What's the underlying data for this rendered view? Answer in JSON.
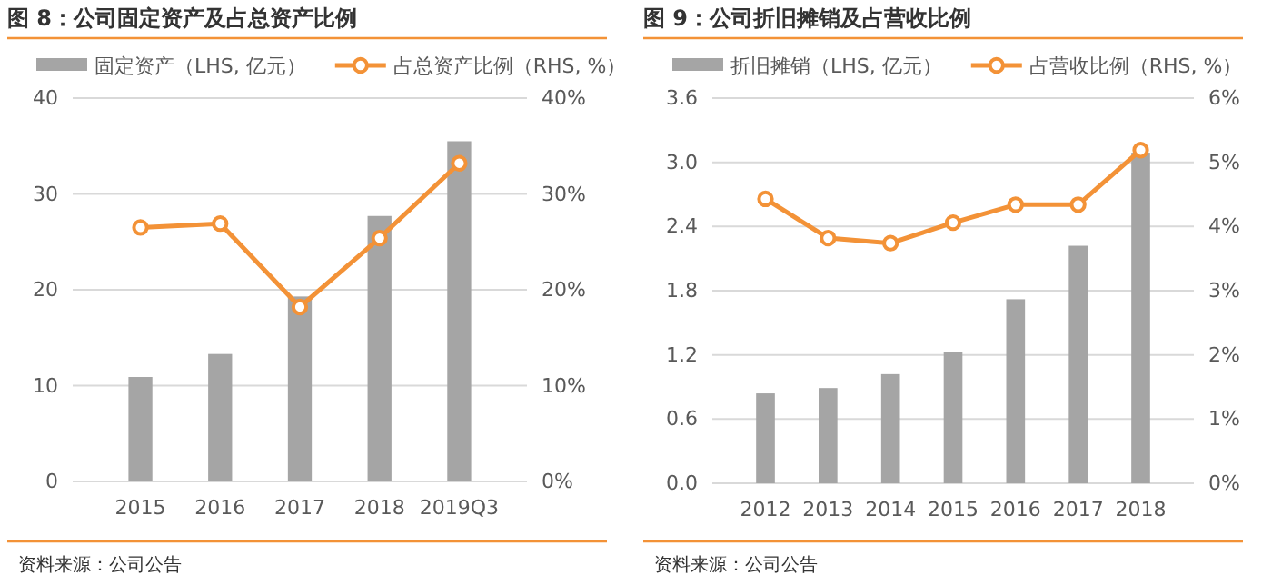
{
  "chart_data": [
    {
      "type": "bar",
      "title": "图 8：公司固定资产及占总资产比例",
      "categories": [
        "2015",
        "2016",
        "2017",
        "2018",
        "2019Q3"
      ],
      "series": [
        {
          "name": "固定资产（LHS, 亿元）",
          "color": "#a5a5a5",
          "values": [
            10.9,
            13.3,
            19.3,
            27.7,
            35.5
          ]
        },
        {
          "name": "占总资产比例（RHS, %）",
          "type": "line",
          "axis": "y2",
          "color": "#f39237",
          "values": [
            26.5,
            26.9,
            18.2,
            25.4,
            33.2
          ]
        }
      ],
      "ylim": [
        0,
        40
      ],
      "yticks": [
        0,
        10,
        20,
        30,
        40
      ],
      "y2lim": [
        0,
        40
      ],
      "y2ticks": [
        {
          "value": 0,
          "label": "0%"
        },
        {
          "value": 10,
          "label": "10%"
        },
        {
          "value": 20,
          "label": "20%"
        },
        {
          "value": 30,
          "label": "30%"
        },
        {
          "value": 40,
          "label": "40%"
        }
      ],
      "grid": "y",
      "legend": "top",
      "marker": "circle",
      "line_style": "solid",
      "annotations": [
        "资料来源：公司公告"
      ]
    },
    {
      "type": "bar",
      "title": "图 9：公司折旧摊销及占营收比例",
      "categories": [
        "2012",
        "2013",
        "2014",
        "2015",
        "2016",
        "2017",
        "2018"
      ],
      "series": [
        {
          "name": "折旧摊销（LHS, 亿元）",
          "color": "#a5a5a5",
          "values": [
            0.84,
            0.89,
            1.02,
            1.23,
            1.72,
            2.22,
            3.09
          ]
        },
        {
          "name": "占营收比例（RHS, %）",
          "type": "line",
          "axis": "y2",
          "color": "#f39237",
          "values": [
            4.43,
            3.82,
            3.74,
            4.06,
            4.34,
            4.34,
            5.19
          ]
        }
      ],
      "ylim": [
        0,
        3.6
      ],
      "yticks": [
        {
          "value": 0,
          "label": "0.0"
        },
        0.6,
        1.2,
        1.8,
        2.4,
        {
          "value": 3,
          "label": "3.0"
        },
        3.6
      ],
      "y2lim": [
        0,
        6
      ],
      "y2ticks": [
        {
          "value": 0,
          "label": "0%"
        },
        {
          "value": 1,
          "label": "1%"
        },
        {
          "value": 2,
          "label": "2%"
        },
        {
          "value": 3,
          "label": "3%"
        },
        {
          "value": 4,
          "label": "4%"
        },
        {
          "value": 5,
          "label": "5%"
        },
        {
          "value": 6,
          "label": "6%"
        }
      ],
      "grid": "y",
      "legend": "top",
      "marker": "circle",
      "line_style": "solid",
      "annotations": [
        "资料来源：公司公告"
      ]
    }
  ]
}
